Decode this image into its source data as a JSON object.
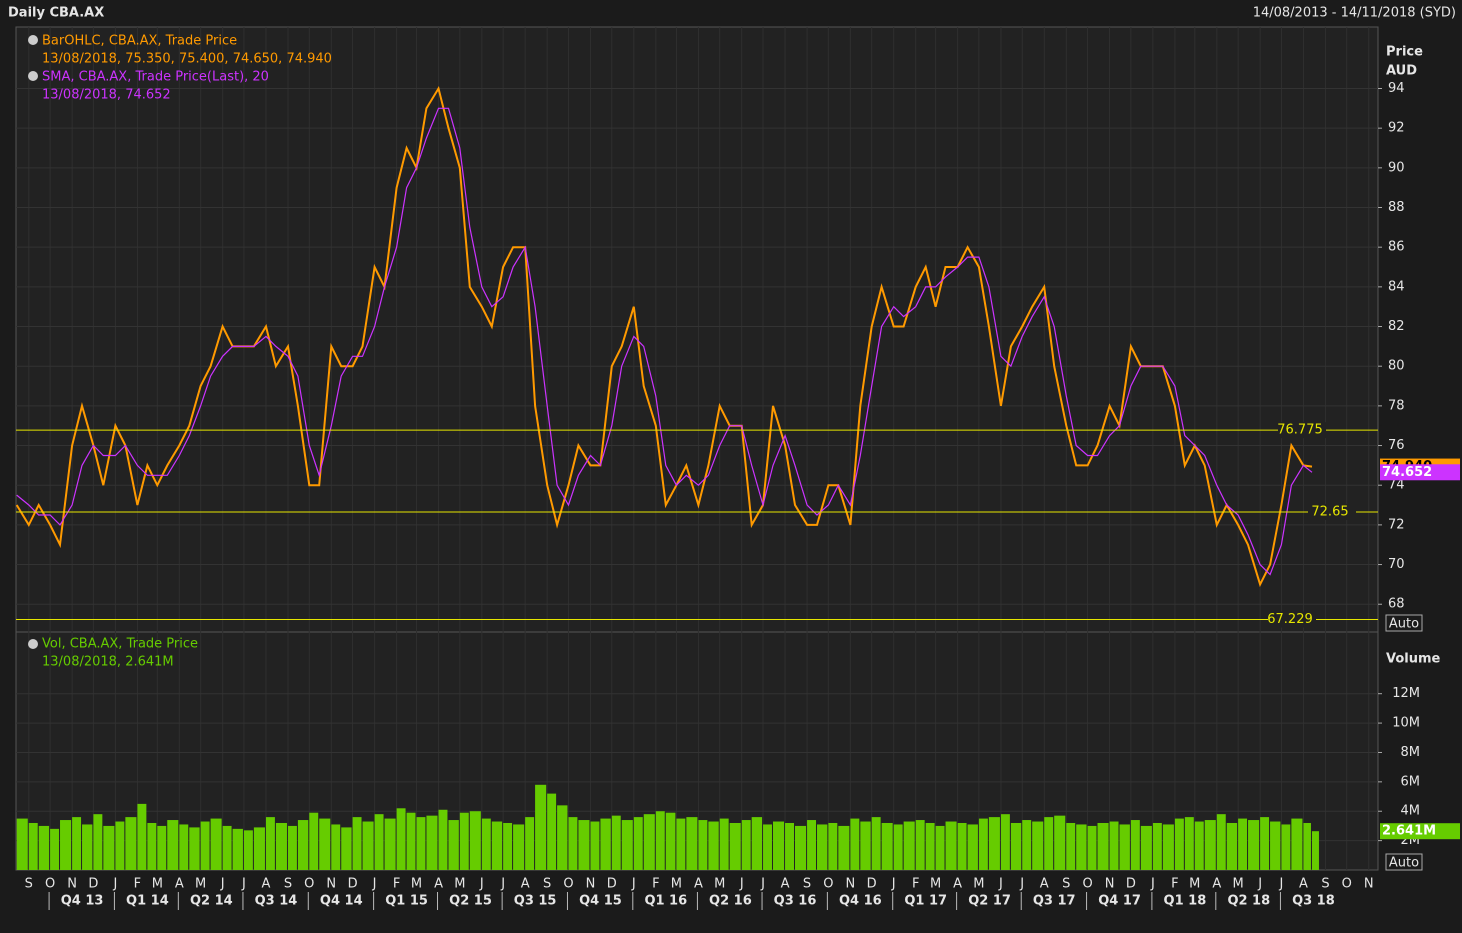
{
  "header": {
    "title": "Daily CBA.AX",
    "range": "14/08/2013 - 14/11/2018 (SYD)"
  },
  "chart_data": [
    {
      "type": "line",
      "xlim": [
        "2013-08-14",
        "2018-11-14"
      ],
      "x": [
        "2013-08-15",
        "2013-09-01",
        "2013-09-15",
        "2013-10-01",
        "2013-10-15",
        "2013-11-01",
        "2013-11-15",
        "2013-12-01",
        "2013-12-15",
        "2014-01-01",
        "2014-01-15",
        "2014-02-01",
        "2014-02-15",
        "2014-03-01",
        "2014-03-15",
        "2014-04-01",
        "2014-04-15",
        "2014-05-01",
        "2014-05-15",
        "2014-06-01",
        "2014-06-15",
        "2014-07-01",
        "2014-07-15",
        "2014-08-01",
        "2014-08-15",
        "2014-09-01",
        "2014-09-15",
        "2014-10-01",
        "2014-10-15",
        "2014-11-01",
        "2014-11-15",
        "2014-12-01",
        "2014-12-15",
        "2015-01-01",
        "2015-01-15",
        "2015-02-01",
        "2015-02-15",
        "2015-03-01",
        "2015-03-15",
        "2015-04-01",
        "2015-04-15",
        "2015-05-01",
        "2015-05-15",
        "2015-06-01",
        "2015-06-15",
        "2015-07-01",
        "2015-07-15",
        "2015-08-01",
        "2015-08-15",
        "2015-09-01",
        "2015-09-15",
        "2015-10-01",
        "2015-10-15",
        "2015-11-01",
        "2015-11-15",
        "2015-12-01",
        "2015-12-15",
        "2016-01-01",
        "2016-01-15",
        "2016-02-01",
        "2016-02-15",
        "2016-03-01",
        "2016-03-15",
        "2016-04-01",
        "2016-04-15",
        "2016-05-01",
        "2016-05-15",
        "2016-06-01",
        "2016-06-15",
        "2016-07-01",
        "2016-07-15",
        "2016-08-01",
        "2016-08-15",
        "2016-09-01",
        "2016-09-15",
        "2016-10-01",
        "2016-10-15",
        "2016-11-01",
        "2016-11-15",
        "2016-12-01",
        "2016-12-15",
        "2017-01-01",
        "2017-01-15",
        "2017-02-01",
        "2017-02-15",
        "2017-03-01",
        "2017-03-15",
        "2017-04-01",
        "2017-04-15",
        "2017-05-01",
        "2017-05-15",
        "2017-06-01",
        "2017-06-15",
        "2017-07-01",
        "2017-07-15",
        "2017-08-01",
        "2017-08-15",
        "2017-09-01",
        "2017-09-15",
        "2017-10-01",
        "2017-10-15",
        "2017-11-01",
        "2017-11-15",
        "2017-12-01",
        "2017-12-15",
        "2018-01-01",
        "2018-01-15",
        "2018-02-01",
        "2018-02-15",
        "2018-03-01",
        "2018-03-15",
        "2018-04-01",
        "2018-04-15",
        "2018-05-01",
        "2018-05-15",
        "2018-06-01",
        "2018-06-15",
        "2018-07-01",
        "2018-07-15",
        "2018-08-01",
        "2018-08-13"
      ],
      "series": [
        {
          "name": "BarOHLC, CBA.AX, Trade Price",
          "legend_value": "13/08/2018, 75.350, 75.400, 74.650, 74.940",
          "color": "#ff9a00",
          "values": [
            73,
            72,
            73,
            72,
            71,
            76,
            78,
            76,
            74,
            77,
            76,
            73,
            75,
            74,
            75,
            76,
            77,
            79,
            80,
            82,
            81,
            81,
            81,
            82,
            80,
            81,
            78,
            74,
            74,
            81,
            80,
            80,
            81,
            85,
            84,
            89,
            91,
            90,
            93,
            94,
            92,
            90,
            84,
            83,
            82,
            85,
            86,
            86,
            78,
            74,
            72,
            74,
            76,
            75,
            75,
            80,
            81,
            83,
            79,
            77,
            73,
            74,
            75,
            73,
            75,
            78,
            77,
            77,
            72,
            73,
            78,
            76,
            73,
            72,
            72,
            74,
            74,
            72,
            78,
            82,
            84,
            82,
            82,
            84,
            85,
            83,
            85,
            85,
            86,
            85,
            82,
            78,
            81,
            82,
            83,
            84,
            80,
            77,
            75,
            75,
            76,
            78,
            77,
            81,
            80,
            80,
            80,
            78,
            75,
            76,
            75,
            72,
            73,
            72,
            71,
            69,
            70,
            73,
            76,
            75,
            74.94
          ]
        },
        {
          "name": "SMA, CBA.AX, Trade Price(Last),  20",
          "legend_value": "13/08/2018, 74.652",
          "color": "#cc33ff",
          "values": [
            73.5,
            73,
            72.5,
            72.5,
            72,
            73,
            75,
            76,
            75.5,
            75.5,
            76,
            75,
            74.5,
            74.5,
            74.5,
            75.5,
            76.5,
            78,
            79.5,
            80.5,
            81,
            81,
            81,
            81.5,
            81,
            80.5,
            79.5,
            76,
            74.5,
            77,
            79.5,
            80.5,
            80.5,
            82,
            84,
            86,
            89,
            90,
            91.5,
            93,
            93,
            91,
            87,
            84,
            83,
            83.5,
            85,
            86,
            83,
            78,
            74,
            73,
            74.5,
            75.5,
            75,
            77,
            80,
            81.5,
            81,
            78.5,
            75,
            74,
            74.5,
            74,
            74.5,
            76,
            77,
            77,
            75,
            73,
            75,
            76.5,
            75,
            73,
            72.5,
            73,
            74,
            73,
            75.5,
            79,
            82,
            83,
            82.5,
            83,
            84,
            84,
            84.5,
            85,
            85.5,
            85.5,
            84,
            80.5,
            80,
            81.5,
            82.5,
            83.5,
            82,
            78.5,
            76,
            75.5,
            75.5,
            76.5,
            77,
            79,
            80,
            80,
            80,
            79,
            76.5,
            76,
            75.5,
            74,
            73,
            72.5,
            71.5,
            70,
            69.5,
            71,
            74,
            75,
            74.652
          ]
        }
      ],
      "last_values": [
        {
          "value": 74.94,
          "label": "74.940"
        },
        74.652
      ],
      "hlines": [
        76.775,
        72.65,
        67.229
      ],
      "ylabel": "Price",
      "yunit": "AUD",
      "scale_label": "Auto",
      "ylim": [
        66.6,
        97.1
      ],
      "yticks": [
        68,
        70,
        72,
        74,
        76,
        78,
        80,
        82,
        84,
        86,
        88,
        90,
        92,
        94
      ],
      "grid": true
    },
    {
      "type": "bar",
      "series": [
        {
          "name": "Vol, CBA.AX, Trade Price",
          "legend_value": "13/08/2018, 2.641M",
          "color": "#66cc00",
          "values": [
            3500000,
            3200000,
            3000000,
            2800000,
            3400000,
            3600000,
            3100000,
            3800000,
            3000000,
            3300000,
            3600000,
            4500000,
            3200000,
            3000000,
            3400000,
            3100000,
            2900000,
            3300000,
            3500000,
            3000000,
            2800000,
            2700000,
            2900000,
            3600000,
            3200000,
            3000000,
            3400000,
            3900000,
            3500000,
            3100000,
            2900000,
            3600000,
            3300000,
            3800000,
            3500000,
            4200000,
            3900000,
            3600000,
            3700000,
            4100000,
            3400000,
            3900000,
            4000000,
            3500000,
            3300000,
            3200000,
            3100000,
            3600000,
            5800000,
            5200000,
            4400000,
            3600000,
            3400000,
            3300000,
            3500000,
            3700000,
            3400000,
            3600000,
            3800000,
            4000000,
            3900000,
            3500000,
            3600000,
            3400000,
            3300000,
            3500000,
            3200000,
            3400000,
            3600000,
            3100000,
            3300000,
            3200000,
            3000000,
            3400000,
            3100000,
            3200000,
            3000000,
            3500000,
            3300000,
            3600000,
            3200000,
            3100000,
            3300000,
            3400000,
            3200000,
            3000000,
            3300000,
            3200000,
            3100000,
            3500000,
            3600000,
            3800000,
            3200000,
            3400000,
            3300000,
            3600000,
            3700000,
            3200000,
            3100000,
            3000000,
            3200000,
            3300000,
            3100000,
            3400000,
            3000000,
            3200000,
            3100000,
            3500000,
            3600000,
            3300000,
            3400000,
            3800000,
            3200000,
            3500000,
            3400000,
            3600000,
            3300000,
            3100000,
            3500000,
            3200000,
            2641000
          ]
        }
      ],
      "last_value": {
        "value": 2641000,
        "label": "2.641M"
      },
      "ylabel": "Volume",
      "scale_label": "Auto",
      "ylim": [
        0,
        16200000
      ],
      "yticks": [
        {
          "value": 2000000,
          "label": "2M"
        },
        {
          "value": 4000000,
          "label": "4M"
        },
        {
          "value": 6000000,
          "label": "6M"
        },
        {
          "value": 8000000,
          "label": "8M"
        },
        {
          "value": 10000000,
          "label": "10M"
        },
        {
          "value": 12000000,
          "label": "12M"
        }
      ],
      "xticks": [
        {
          "value": "2013-09-01",
          "label": "S"
        },
        {
          "value": "2013-10-01",
          "label": "O"
        },
        {
          "value": "2013-11-01",
          "label": "N"
        },
        {
          "value": "2013-12-01",
          "label": "D"
        },
        {
          "value": "2014-01-01",
          "label": "J"
        },
        {
          "value": "2014-02-01",
          "label": "F"
        },
        {
          "value": "2014-03-01",
          "label": "M"
        },
        {
          "value": "2014-04-01",
          "label": "A"
        },
        {
          "value": "2014-05-01",
          "label": "M"
        },
        {
          "value": "2014-06-01",
          "label": "J"
        },
        {
          "value": "2014-07-01",
          "label": "J"
        },
        {
          "value": "2014-08-01",
          "label": "A"
        },
        {
          "value": "2014-09-01",
          "label": "S"
        },
        {
          "value": "2014-10-01",
          "label": "O"
        },
        {
          "value": "2014-11-01",
          "label": "N"
        },
        {
          "value": "2014-12-01",
          "label": "D"
        },
        {
          "value": "2015-01-01",
          "label": "J"
        },
        {
          "value": "2015-02-01",
          "label": "F"
        },
        {
          "value": "2015-03-01",
          "label": "M"
        },
        {
          "value": "2015-04-01",
          "label": "A"
        },
        {
          "value": "2015-05-01",
          "label": "M"
        },
        {
          "value": "2015-06-01",
          "label": "J"
        },
        {
          "value": "2015-07-01",
          "label": "J"
        },
        {
          "value": "2015-08-01",
          "label": "A"
        },
        {
          "value": "2015-09-01",
          "label": "S"
        },
        {
          "value": "2015-10-01",
          "label": "O"
        },
        {
          "value": "2015-11-01",
          "label": "N"
        },
        {
          "value": "2015-12-01",
          "label": "D"
        },
        {
          "value": "2016-01-01",
          "label": "J"
        },
        {
          "value": "2016-02-01",
          "label": "F"
        },
        {
          "value": "2016-03-01",
          "label": "M"
        },
        {
          "value": "2016-04-01",
          "label": "A"
        },
        {
          "value": "2016-05-01",
          "label": "M"
        },
        {
          "value": "2016-06-01",
          "label": "J"
        },
        {
          "value": "2016-07-01",
          "label": "J"
        },
        {
          "value": "2016-08-01",
          "label": "A"
        },
        {
          "value": "2016-09-01",
          "label": "S"
        },
        {
          "value": "2016-10-01",
          "label": "O"
        },
        {
          "value": "2016-11-01",
          "label": "N"
        },
        {
          "value": "2016-12-01",
          "label": "D"
        },
        {
          "value": "2017-01-01",
          "label": "J"
        },
        {
          "value": "2017-02-01",
          "label": "F"
        },
        {
          "value": "2017-03-01",
          "label": "M"
        },
        {
          "value": "2017-04-01",
          "label": "A"
        },
        {
          "value": "2017-05-01",
          "label": "M"
        },
        {
          "value": "2017-06-01",
          "label": "J"
        },
        {
          "value": "2017-07-01",
          "label": "J"
        },
        {
          "value": "2017-08-01",
          "label": "A"
        },
        {
          "value": "2017-09-01",
          "label": "S"
        },
        {
          "value": "2017-10-01",
          "label": "O"
        },
        {
          "value": "2017-11-01",
          "label": "N"
        },
        {
          "value": "2017-12-01",
          "label": "D"
        },
        {
          "value": "2018-01-01",
          "label": "J"
        },
        {
          "value": "2018-02-01",
          "label": "F"
        },
        {
          "value": "2018-03-01",
          "label": "M"
        },
        {
          "value": "2018-04-01",
          "label": "A"
        },
        {
          "value": "2018-05-01",
          "label": "M"
        },
        {
          "value": "2018-06-01",
          "label": "J"
        },
        {
          "value": "2018-07-01",
          "label": "J"
        },
        {
          "value": "2018-08-01",
          "label": "A"
        },
        {
          "value": "2018-09-01",
          "label": "S"
        },
        {
          "value": "2018-10-01",
          "label": "O"
        },
        {
          "value": "2018-11-01",
          "label": "N"
        }
      ],
      "quarter_ticks": [
        {
          "value": "2013-10-01",
          "label": "Q4 13"
        },
        {
          "value": "2014-01-01",
          "label": "Q1 14"
        },
        {
          "value": "2014-04-01",
          "label": "Q2 14"
        },
        {
          "value": "2014-07-01",
          "label": "Q3 14"
        },
        {
          "value": "2014-10-01",
          "label": "Q4 14"
        },
        {
          "value": "2015-01-01",
          "label": "Q1 15"
        },
        {
          "value": "2015-04-01",
          "label": "Q2 15"
        },
        {
          "value": "2015-07-01",
          "label": "Q3 15"
        },
        {
          "value": "2015-10-01",
          "label": "Q4 15"
        },
        {
          "value": "2016-01-01",
          "label": "Q1 16"
        },
        {
          "value": "2016-04-01",
          "label": "Q2 16"
        },
        {
          "value": "2016-07-01",
          "label": "Q3 16"
        },
        {
          "value": "2016-10-01",
          "label": "Q4 16"
        },
        {
          "value": "2017-01-01",
          "label": "Q1 17"
        },
        {
          "value": "2017-04-01",
          "label": "Q2 17"
        },
        {
          "value": "2017-07-01",
          "label": "Q3 17"
        },
        {
          "value": "2017-10-01",
          "label": "Q4 17"
        },
        {
          "value": "2018-01-01",
          "label": "Q1 18"
        },
        {
          "value": "2018-04-01",
          "label": "Q2 18"
        },
        {
          "value": "2018-07-01",
          "label": "Q3 18"
        }
      ],
      "grid": true
    }
  ]
}
